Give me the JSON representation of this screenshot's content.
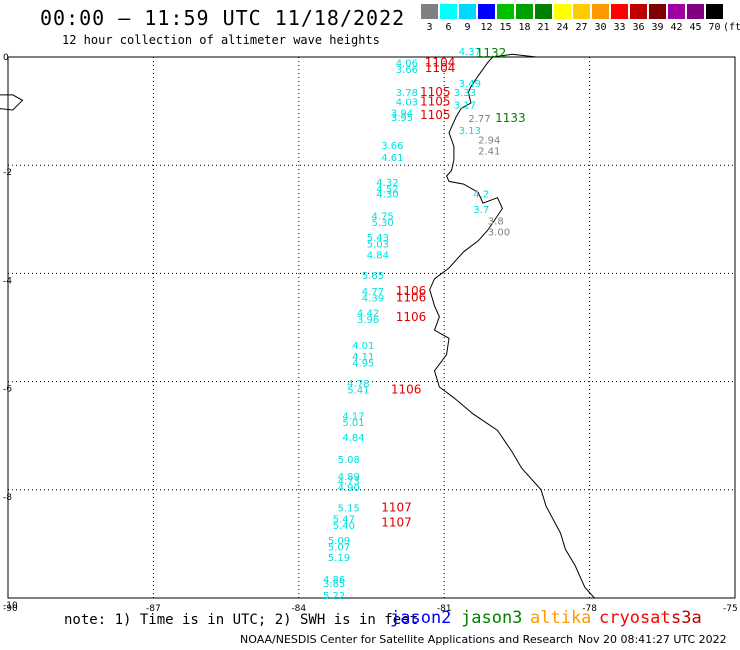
{
  "header": {
    "title": "00:00 – 11:59 UTC 11/18/2022",
    "subtitle": "12 hour collection of altimeter wave heights"
  },
  "legend": {
    "unit": "(ft)",
    "items": [
      {
        "label": "3",
        "color": "#808080"
      },
      {
        "label": "6",
        "color": "#00ffff"
      },
      {
        "label": "9",
        "color": "#00d8ff"
      },
      {
        "label": "12",
        "color": "#0000ff"
      },
      {
        "label": "15",
        "color": "#00c000"
      },
      {
        "label": "18",
        "color": "#00a000"
      },
      {
        "label": "21",
        "color": "#008000"
      },
      {
        "label": "24",
        "color": "#ffff00"
      },
      {
        "label": "27",
        "color": "#ffcc00"
      },
      {
        "label": "30",
        "color": "#ff9900"
      },
      {
        "label": "33",
        "color": "#ff0000"
      },
      {
        "label": "36",
        "color": "#c00000"
      },
      {
        "label": "39",
        "color": "#800000"
      },
      {
        "label": "42",
        "color": "#a000a0"
      },
      {
        "label": "45",
        "color": "#800080"
      },
      {
        "label": "70",
        "color": "#000000"
      }
    ]
  },
  "map": {
    "lon_ticks": [
      "-90",
      "-87",
      "-84",
      "-81",
      "-78",
      "-75"
    ],
    "lat_ticks": [
      "0",
      "-2",
      "-4",
      "-6",
      "-8",
      "-10"
    ],
    "extent": {
      "lon": [
        -90,
        -75
      ],
      "lat": [
        -10,
        0
      ]
    },
    "colors": {
      "cyan": "#00e0e0",
      "gray": "#808080",
      "red": "#e00000",
      "green": "#008000"
    },
    "wave_labels": [
      {
        "text": "4.37",
        "lon": -80.7,
        "lat": 0.04,
        "c": "cyan"
      },
      {
        "text": "4.06",
        "lon": -82.0,
        "lat": -0.18,
        "c": "cyan"
      },
      {
        "text": "3.66",
        "lon": -82.0,
        "lat": -0.3,
        "c": "cyan"
      },
      {
        "text": "3.49",
        "lon": -80.7,
        "lat": -0.55,
        "c": "cyan"
      },
      {
        "text": "3.33",
        "lon": -80.8,
        "lat": -0.72,
        "c": "cyan"
      },
      {
        "text": "3.78",
        "lon": -82.0,
        "lat": -0.72,
        "c": "cyan"
      },
      {
        "text": "4.03",
        "lon": -82.0,
        "lat": -0.9,
        "c": "cyan"
      },
      {
        "text": "3.17",
        "lon": -80.8,
        "lat": -0.95,
        "c": "cyan"
      },
      {
        "text": "3.94",
        "lon": -82.1,
        "lat": -1.1,
        "c": "cyan"
      },
      {
        "text": "3.95",
        "lon": -82.1,
        "lat": -1.18,
        "c": "cyan"
      },
      {
        "text": "2.77",
        "lon": -80.5,
        "lat": -1.2,
        "c": "gray"
      },
      {
        "text": "3.13",
        "lon": -80.7,
        "lat": -1.42,
        "c": "cyan"
      },
      {
        "text": "2.94",
        "lon": -80.3,
        "lat": -1.6,
        "c": "gray"
      },
      {
        "text": "2.41",
        "lon": -80.3,
        "lat": -1.8,
        "c": "gray"
      },
      {
        "text": "3.66",
        "lon": -82.3,
        "lat": -1.7,
        "c": "cyan"
      },
      {
        "text": "4.61",
        "lon": -82.3,
        "lat": -1.92,
        "c": "cyan"
      },
      {
        "text": "4.32",
        "lon": -82.4,
        "lat": -2.38,
        "c": "cyan"
      },
      {
        "text": "4.52",
        "lon": -82.4,
        "lat": -2.5,
        "c": "cyan"
      },
      {
        "text": "4.30",
        "lon": -82.4,
        "lat": -2.6,
        "c": "cyan"
      },
      {
        "text": "4.2",
        "lon": -80.4,
        "lat": -2.6,
        "c": "cyan"
      },
      {
        "text": "3.7",
        "lon": -80.4,
        "lat": -2.88,
        "c": "cyan"
      },
      {
        "text": "3.8",
        "lon": -80.1,
        "lat": -3.1,
        "c": "gray"
      },
      {
        "text": "3.00",
        "lon": -80.1,
        "lat": -3.3,
        "c": "gray"
      },
      {
        "text": "4.75",
        "lon": -82.5,
        "lat": -3.0,
        "c": "cyan"
      },
      {
        "text": "5.30",
        "lon": -82.5,
        "lat": -3.12,
        "c": "cyan"
      },
      {
        "text": "5.43",
        "lon": -82.6,
        "lat": -3.4,
        "c": "cyan"
      },
      {
        "text": "5.03",
        "lon": -82.6,
        "lat": -3.52,
        "c": "cyan"
      },
      {
        "text": "4.84",
        "lon": -82.6,
        "lat": -3.72,
        "c": "cyan"
      },
      {
        "text": "5.65",
        "lon": -82.7,
        "lat": -4.1,
        "c": "cyan"
      },
      {
        "text": "4.77",
        "lon": -82.7,
        "lat": -4.4,
        "c": "cyan"
      },
      {
        "text": "4.39",
        "lon": -82.7,
        "lat": -4.52,
        "c": "cyan"
      },
      {
        "text": "4.42",
        "lon": -82.8,
        "lat": -4.8,
        "c": "cyan"
      },
      {
        "text": "3.96",
        "lon": -82.8,
        "lat": -4.92,
        "c": "cyan"
      },
      {
        "text": "4.01",
        "lon": -82.9,
        "lat": -5.4,
        "c": "cyan"
      },
      {
        "text": "4.11",
        "lon": -82.9,
        "lat": -5.6,
        "c": "cyan"
      },
      {
        "text": "4.95",
        "lon": -82.9,
        "lat": -5.72,
        "c": "cyan"
      },
      {
        "text": "4.78",
        "lon": -83.0,
        "lat": -6.1,
        "c": "cyan"
      },
      {
        "text": "5.41",
        "lon": -83.0,
        "lat": -6.22,
        "c": "cyan"
      },
      {
        "text": "4.17",
        "lon": -83.1,
        "lat": -6.7,
        "c": "cyan"
      },
      {
        "text": "5.01",
        "lon": -83.1,
        "lat": -6.82,
        "c": "cyan"
      },
      {
        "text": "4.84",
        "lon": -83.1,
        "lat": -7.1,
        "c": "cyan"
      },
      {
        "text": "5.08",
        "lon": -83.2,
        "lat": -7.5,
        "c": "cyan"
      },
      {
        "text": "4.89",
        "lon": -83.2,
        "lat": -7.82,
        "c": "cyan"
      },
      {
        "text": "4.73",
        "lon": -83.2,
        "lat": -7.9,
        "c": "cyan"
      },
      {
        "text": "4.90",
        "lon": -83.2,
        "lat": -8.02,
        "c": "cyan"
      },
      {
        "text": "5.15",
        "lon": -83.2,
        "lat": -8.4,
        "c": "cyan"
      },
      {
        "text": "5.47",
        "lon": -83.3,
        "lat": -8.6,
        "c": "cyan"
      },
      {
        "text": "5.40",
        "lon": -83.3,
        "lat": -8.72,
        "c": "cyan"
      },
      {
        "text": "5.09",
        "lon": -83.4,
        "lat": -9.0,
        "c": "cyan"
      },
      {
        "text": "5.07",
        "lon": -83.4,
        "lat": -9.12,
        "c": "cyan"
      },
      {
        "text": "5.19",
        "lon": -83.4,
        "lat": -9.32,
        "c": "cyan"
      },
      {
        "text": "4.86",
        "lon": -83.5,
        "lat": -9.72,
        "c": "cyan"
      },
      {
        "text": "3.85",
        "lon": -83.5,
        "lat": -9.8,
        "c": "cyan"
      },
      {
        "text": "5.22",
        "lon": -83.5,
        "lat": -10.02,
        "c": "cyan"
      }
    ],
    "time_labels": [
      {
        "text": "1132",
        "lon": -80.35,
        "lat": 0.0,
        "c": "green"
      },
      {
        "text": "1104",
        "lon": -81.4,
        "lat": -0.18,
        "c": "red"
      },
      {
        "text": "1104",
        "lon": -81.4,
        "lat": -0.28,
        "c": "red"
      },
      {
        "text": "1105",
        "lon": -81.5,
        "lat": -0.72,
        "c": "red"
      },
      {
        "text": "1105",
        "lon": -81.5,
        "lat": -0.9,
        "c": "red"
      },
      {
        "text": "1105",
        "lon": -81.5,
        "lat": -1.15,
        "c": "red"
      },
      {
        "text": "1133",
        "lon": -79.95,
        "lat": -1.2,
        "c": "green"
      },
      {
        "text": "1106",
        "lon": -82.0,
        "lat": -4.4,
        "c": "red"
      },
      {
        "text": "1106",
        "lon": -82.0,
        "lat": -4.52,
        "c": "red"
      },
      {
        "text": "1106",
        "lon": -82.0,
        "lat": -4.88,
        "c": "red"
      },
      {
        "text": "1106",
        "lon": -82.1,
        "lat": -6.22,
        "c": "red"
      },
      {
        "text": "1107",
        "lon": -82.3,
        "lat": -8.4,
        "c": "red"
      },
      {
        "text": "1107",
        "lon": -82.3,
        "lat": -8.68,
        "c": "red"
      }
    ],
    "coastline": [
      [
        -79.1,
        0.0
      ],
      [
        -79.6,
        0.05
      ],
      [
        -80.0,
        0.0
      ],
      [
        -80.1,
        -0.1
      ],
      [
        -80.3,
        -0.35
      ],
      [
        -80.45,
        -0.55
      ],
      [
        -80.5,
        -0.65
      ],
      [
        -80.45,
        -0.85
      ],
      [
        -80.65,
        -0.95
      ],
      [
        -80.75,
        -1.1
      ],
      [
        -80.9,
        -1.4
      ],
      [
        -80.8,
        -1.65
      ],
      [
        -80.8,
        -1.9
      ],
      [
        -80.85,
        -2.1
      ],
      [
        -80.95,
        -2.2
      ],
      [
        -80.9,
        -2.3
      ],
      [
        -80.6,
        -2.35
      ],
      [
        -80.3,
        -2.5
      ],
      [
        -80.2,
        -2.7
      ],
      [
        -79.9,
        -2.6
      ],
      [
        -79.8,
        -2.8
      ],
      [
        -80.1,
        -3.2
      ],
      [
        -80.3,
        -3.4
      ],
      [
        -80.6,
        -3.6
      ],
      [
        -80.9,
        -3.9
      ],
      [
        -81.2,
        -4.1
      ],
      [
        -81.3,
        -4.3
      ],
      [
        -81.2,
        -4.6
      ],
      [
        -81.1,
        -4.8
      ],
      [
        -81.2,
        -5.05
      ],
      [
        -80.9,
        -5.2
      ],
      [
        -80.95,
        -5.5
      ],
      [
        -81.2,
        -5.8
      ],
      [
        -81.1,
        -6.1
      ],
      [
        -80.8,
        -6.3
      ],
      [
        -80.4,
        -6.6
      ],
      [
        -79.9,
        -6.9
      ],
      [
        -79.6,
        -7.3
      ],
      [
        -79.4,
        -7.6
      ],
      [
        -79.0,
        -8.0
      ],
      [
        -78.9,
        -8.3
      ],
      [
        -78.6,
        -8.8
      ],
      [
        -78.5,
        -9.1
      ],
      [
        -78.3,
        -9.4
      ],
      [
        -78.1,
        -9.8
      ],
      [
        -77.9,
        -10.0
      ]
    ],
    "islands": [
      [
        [
          -90.6,
          -0.7
        ],
        [
          -89.9,
          -0.7
        ],
        [
          -89.7,
          -0.8
        ],
        [
          -89.9,
          -0.98
        ],
        [
          -90.2,
          -0.95
        ],
        [
          -90.6,
          -0.82
        ]
      ],
      [
        [
          -90.45,
          -1.35
        ],
        [
          -90.3,
          -1.33
        ],
        [
          -90.35,
          -1.43
        ],
        [
          -90.47,
          -1.42
        ]
      ]
    ]
  },
  "footer": {
    "note": "note: 1) Time is in UTC; 2) SWH is in feet",
    "satellites": [
      {
        "name": "jason2",
        "color": "#0000ff"
      },
      {
        "name": "jason3",
        "color": "#008000"
      },
      {
        "name": "altika",
        "color": "#ff9900"
      },
      {
        "name": "cryosat",
        "color": "#ff0000"
      },
      {
        "name": "s3a",
        "color": "#c00000"
      }
    ],
    "credit": "NOAA/NESDIS Center for Satellite Applications and Research",
    "timestamp": "Nov 20 08:41:27 UTC 2022"
  }
}
